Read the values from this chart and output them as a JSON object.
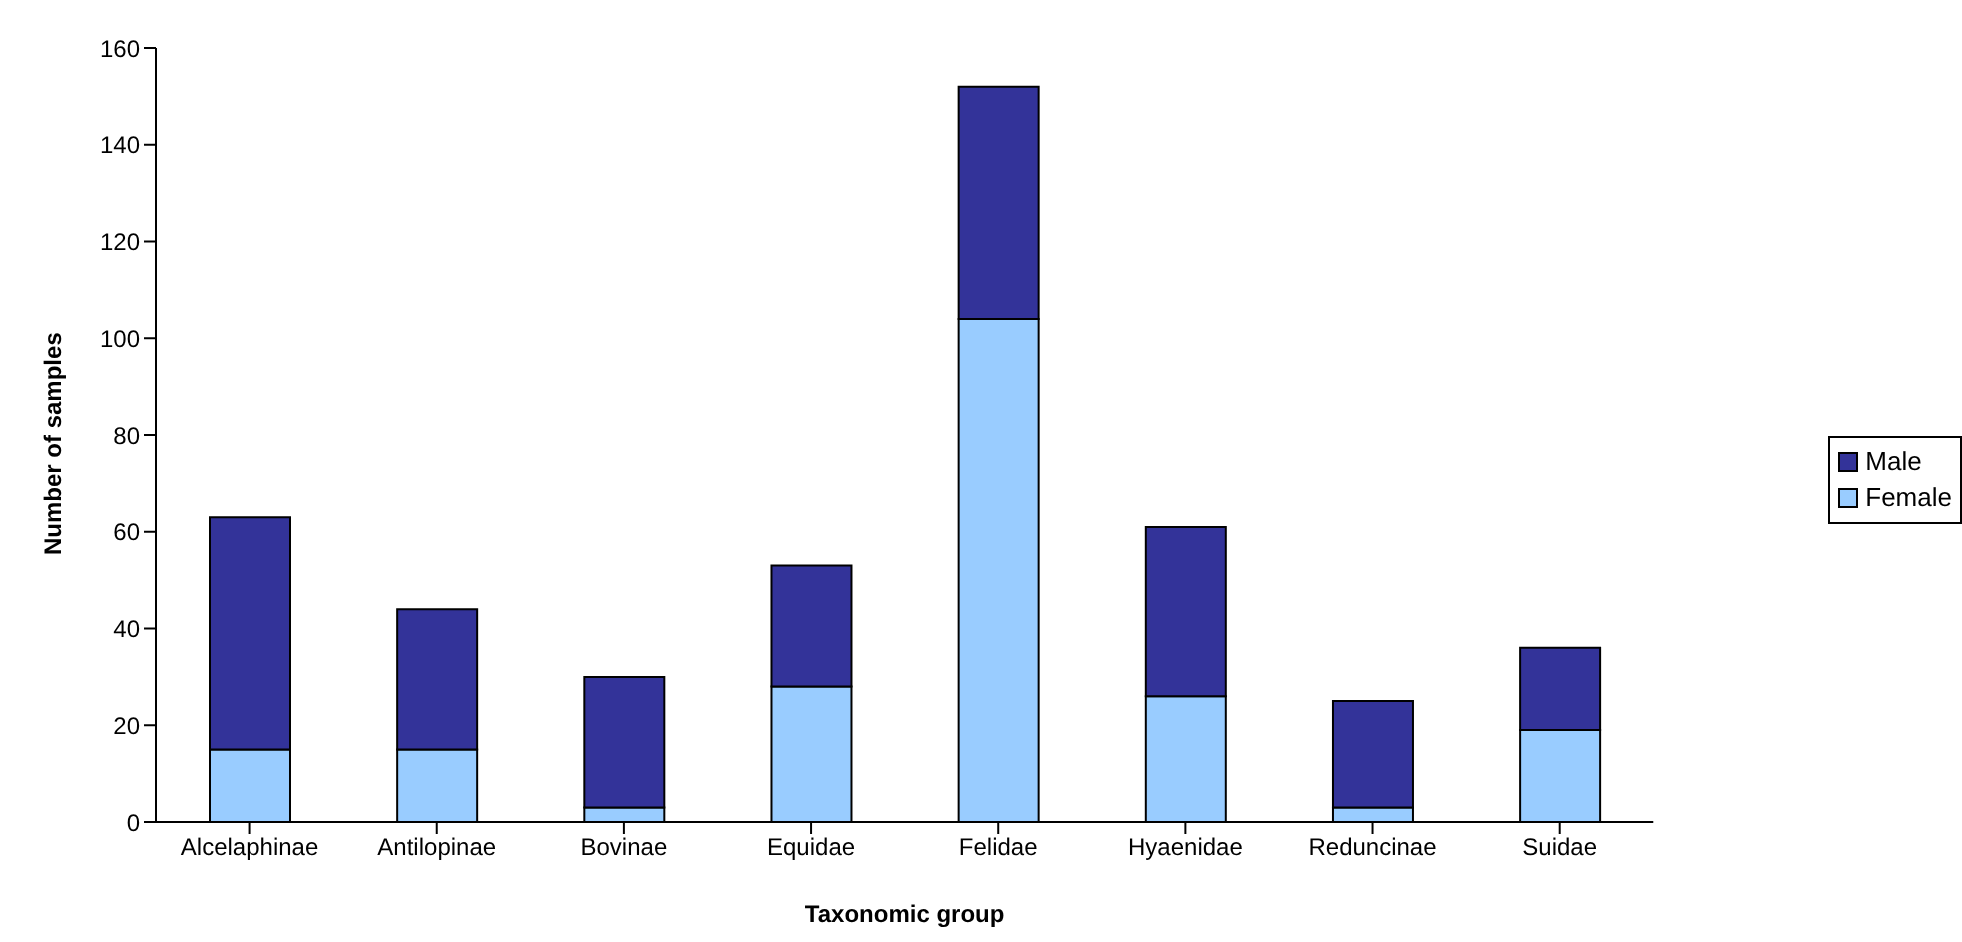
{
  "chart_data": {
    "type": "bar",
    "stacked": true,
    "xlabel": "Taxonomic group",
    "ylabel": "Number of samples",
    "categories": [
      "Alcelaphinae",
      "Antilopinae",
      "Bovinae",
      "Equidae",
      "Felidae",
      "Hyaenidae",
      "Reduncinae",
      "Suidae"
    ],
    "series": [
      {
        "name": "Female",
        "color": "#99ccff",
        "values": [
          15,
          15,
          3,
          28,
          104,
          26,
          3,
          19
        ]
      },
      {
        "name": "Male",
        "color": "#333399",
        "values": [
          48,
          29,
          27,
          25,
          48,
          35,
          22,
          17
        ]
      }
    ],
    "ylim": [
      0,
      160
    ],
    "yticks": [
      0,
      20,
      40,
      60,
      80,
      100,
      120,
      140,
      160
    ],
    "grid": false,
    "legend": "right"
  }
}
